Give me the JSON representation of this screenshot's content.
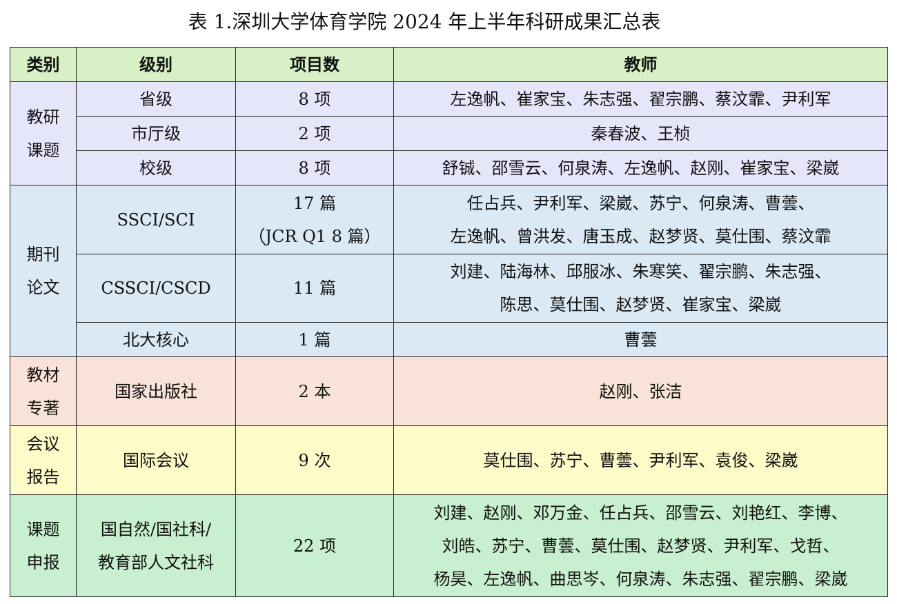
{
  "title": "表 1.深圳大学体育学院 2024 年上半年科研成果汇总表",
  "headers": [
    "类别",
    "级别",
    "项目数",
    "教师"
  ],
  "sections": [
    {
      "category": [
        "教研",
        "课题"
      ],
      "rows": [
        {
          "level": [
            "省级"
          ],
          "count": [
            "8 项"
          ],
          "teachers": [
            "左逸帆、崔家宝、朱志强、翟宗鹏、蔡汶霏、尹利军"
          ]
        },
        {
          "level": [
            "市厅级"
          ],
          "count": [
            "2 项"
          ],
          "teachers": [
            "秦春波、王桢"
          ]
        },
        {
          "level": [
            "校级"
          ],
          "count": [
            "8 项"
          ],
          "teachers": [
            "舒铖、邵雪云、何泉涛、左逸帆、赵刚、崔家宝、梁崴"
          ]
        }
      ]
    },
    {
      "category": [
        "期刊",
        "论文"
      ],
      "rows": [
        {
          "level": [
            "SSCI/SCI"
          ],
          "count": [
            "17 篇",
            "（JCR Q1 8 篇）"
          ],
          "teachers": [
            "任占兵、尹利军、梁崴、苏宁、何泉涛、曹蕓、",
            "左逸帆、曾洪发、唐玉成、赵梦贤、莫仕围、蔡汶霏"
          ]
        },
        {
          "level": [
            "CSSCI/CSCD"
          ],
          "count": [
            "11 篇"
          ],
          "teachers": [
            "刘建、陆海林、邱服冰、朱寒笑、翟宗鹏、朱志强、",
            "陈思、莫仕围、赵梦贤、崔家宝、梁崴"
          ]
        },
        {
          "level": [
            "北大核心"
          ],
          "count": [
            "1 篇"
          ],
          "teachers": [
            "曹蕓"
          ]
        }
      ]
    },
    {
      "category": [
        "教材",
        "专著"
      ],
      "rows": [
        {
          "level": [
            "国家出版社"
          ],
          "count": [
            "2 本"
          ],
          "teachers": [
            "赵刚、张洁"
          ]
        }
      ]
    },
    {
      "category": [
        "会议",
        "报告"
      ],
      "rows": [
        {
          "level": [
            "国际会议"
          ],
          "count": [
            "9 次"
          ],
          "teachers": [
            "莫仕围、苏宁、曹蕓、尹利军、袁俊、梁崴"
          ]
        }
      ]
    },
    {
      "category": [
        "课题",
        "申报"
      ],
      "rows": [
        {
          "level": [
            "国自然/国社科/",
            "教育部人文社科"
          ],
          "count": [
            "22 项"
          ],
          "teachers": [
            "刘建、赵刚、邓万金、任占兵、邵雪云、刘艳红、李博、",
            "刘皓、苏宁、曹蕓、莫仕围、赵梦贤、尹利军、戈哲、",
            "杨昊、左逸帆、曲思岑、何泉涛、朱志强、翟宗鹏、梁崴"
          ]
        }
      ]
    }
  ],
  "colors": {
    "header": "#d7f0c6",
    "section_1": "#e6e6fb",
    "section_2": "#dbe9f5",
    "section_3": "#f9e2d7",
    "section_4": "#fdfbc7",
    "section_5": "#c8efcf"
  }
}
